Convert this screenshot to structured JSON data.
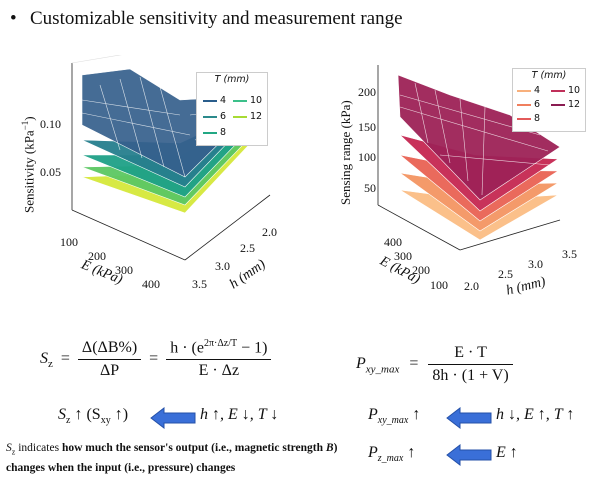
{
  "bullet": {
    "symbol": "•",
    "text": "Customizable sensitivity and measurement range"
  },
  "left_plot": {
    "ylabel": "Sensitivity (kPa",
    "ylabel_sup": "−1",
    "ylabel_end": ")",
    "z_ticks": [
      "0.10",
      "0.05"
    ],
    "e_ticks": [
      "100",
      "200",
      "300",
      "400"
    ],
    "e_label": "E (kPa)",
    "h_ticks": [
      "2.0",
      "2.5",
      "3.0",
      "3.5"
    ],
    "h_label": "h (mm)",
    "legend_title": "T (mm)",
    "legend": [
      {
        "label": "4",
        "color": "#2a5d8c"
      },
      {
        "label": "10",
        "color": "#3cc08a"
      },
      {
        "label": "6",
        "color": "#2b8a8c"
      },
      {
        "label": "12",
        "color": "#a8db34"
      },
      {
        "label": "8",
        "color": "#22a884"
      }
    ]
  },
  "right_plot": {
    "ylabel": "Sensing range (kPa)",
    "z_ticks": [
      "200",
      "150",
      "100",
      "50"
    ],
    "e_ticks": [
      "400",
      "300",
      "200",
      "100"
    ],
    "e_label": "E (kPa)",
    "h_ticks": [
      "2.0",
      "2.5",
      "3.0",
      "3.5"
    ],
    "h_label": "h (mm)",
    "legend_title": "T (mm)",
    "legend": [
      {
        "label": "4",
        "color": "#f8b07c"
      },
      {
        "label": "10",
        "color": "#c0305a"
      },
      {
        "label": "6",
        "color": "#f07f5e"
      },
      {
        "label": "12",
        "color": "#8a1c52"
      },
      {
        "label": "8",
        "color": "#e35a5a"
      }
    ]
  },
  "eq_left": {
    "lhs": "S",
    "lhs_sub": "z",
    "eq1": "=",
    "num1": "Δ(ΔB%)",
    "den1": "ΔP",
    "eq2": "=",
    "num2_a": "h · (e",
    "num2_sup": "2π·Δz/T",
    "num2_b": " − 1)",
    "den2": "E · Δz"
  },
  "eq_right": {
    "lhs": "P",
    "lhs_sub": "xy_max",
    "eq": "=",
    "num": "E · T",
    "den": "8h · (1 + V)"
  },
  "rel1": {
    "lhs": "S",
    "lhs_sub": "z",
    "lhs_mid": " ↑ (S",
    "lhs_sub2": "xy",
    "lhs_end": " ↑)",
    "rhs": "h ↑, E ↓, T ↓"
  },
  "rel2": {
    "lhs": "P",
    "lhs_sub": "xy_max",
    "lhs_end": " ↑",
    "rhs": "h ↓, E ↑, T ↑"
  },
  "rel3": {
    "lhs": "P",
    "lhs_sub": "z_max",
    "lhs_end": " ↑",
    "rhs": "E ↑"
  },
  "footnote": {
    "s": "S",
    "s_sub": "z",
    "t1": " indicates ",
    "t2": "how much the sensor's output (i.e., magnetic strength ",
    "t3": "B",
    "t4": ") changes when the input (i.e., pressure) changes"
  },
  "colors": {
    "arrow": "#3a6fd8",
    "arrow_edge": "#2450a8"
  }
}
